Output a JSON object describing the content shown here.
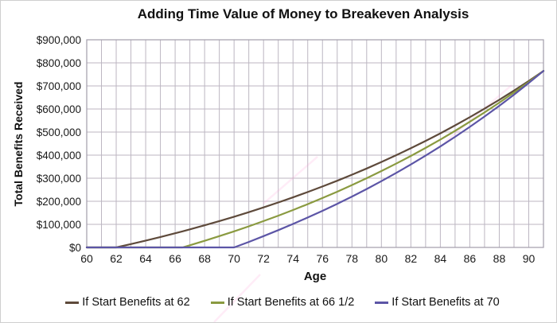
{
  "chart_data": {
    "type": "line",
    "title": "Adding Time Value of Money to Breakeven Analysis",
    "xlabel": "Age",
    "ylabel": "Total Benefits Received",
    "xlim": [
      60,
      91
    ],
    "ylim": [
      0,
      900000
    ],
    "x_gridline_interval": 1,
    "y_gridline_interval": 100000,
    "grid": true,
    "legend_position": "bottom",
    "x_tick_labels": [
      "60",
      "62",
      "64",
      "66",
      "68",
      "70",
      "72",
      "74",
      "76",
      "78",
      "80",
      "82",
      "84",
      "86",
      "88",
      "90"
    ],
    "x_tick_values": [
      60,
      62,
      64,
      66,
      68,
      70,
      72,
      74,
      76,
      78,
      80,
      82,
      84,
      86,
      88,
      90
    ],
    "y_tick_labels": [
      "$0",
      "$100,000",
      "$200,000",
      "$300,000",
      "$400,000",
      "$500,000",
      "$600,000",
      "$700,000",
      "$800,000",
      "$900,000"
    ],
    "y_tick_values": [
      0,
      100000,
      200000,
      300000,
      400000,
      500000,
      600000,
      700000,
      800000,
      900000
    ],
    "x": [
      60,
      61,
      62,
      63,
      64,
      65,
      66,
      66.5,
      67,
      68,
      69,
      70,
      71,
      72,
      73,
      74,
      75,
      76,
      77,
      78,
      79,
      80,
      81,
      82,
      83,
      84,
      85,
      86,
      87,
      88,
      89,
      90,
      91
    ],
    "series": [
      {
        "name": "If Start Benefits at 62",
        "start_age": 62,
        "color": "#5e4a3b",
        "values": [
          0,
          0,
          0,
          14400,
          29500,
          45100,
          61300,
          69700,
          78200,
          95800,
          114100,
          133100,
          152800,
          173400,
          194700,
          217000,
          240100,
          264100,
          289100,
          315100,
          342200,
          370300,
          399600,
          430000,
          461600,
          494600,
          528800,
          564400,
          601400,
          639900,
          679900,
          721500,
          764800
        ]
      },
      {
        "name": "If Start Benefits at 66 1/2",
        "start_age": 66.5,
        "color": "#8a9a40",
        "values": [
          0,
          0,
          0,
          0,
          0,
          0,
          0,
          0,
          9400,
          28700,
          48800,
          69700,
          91500,
          114100,
          137600,
          162100,
          187600,
          214000,
          241500,
          270200,
          299900,
          330900,
          363100,
          396600,
          431400,
          467600,
          505300,
          544400,
          585200,
          627500,
          671600,
          717400,
          765100
        ]
      },
      {
        "name": "If Start Benefits at 70",
        "start_age": 70,
        "color": "#5c55a6",
        "values": [
          0,
          0,
          0,
          0,
          0,
          0,
          0,
          0,
          0,
          0,
          0,
          0,
          23900,
          48800,
          74700,
          101600,
          129600,
          158700,
          189000,
          220500,
          253200,
          287300,
          322700,
          359600,
          397900,
          437700,
          479200,
          522300,
          567100,
          613700,
          662200,
          712600,
          765000
        ]
      }
    ]
  },
  "colors": {
    "gridline": "#bcb6c2",
    "plot_border": "#a29daa",
    "text": "#111111",
    "background": "#ffffff",
    "watermark_pink": "#ff9ad5"
  }
}
